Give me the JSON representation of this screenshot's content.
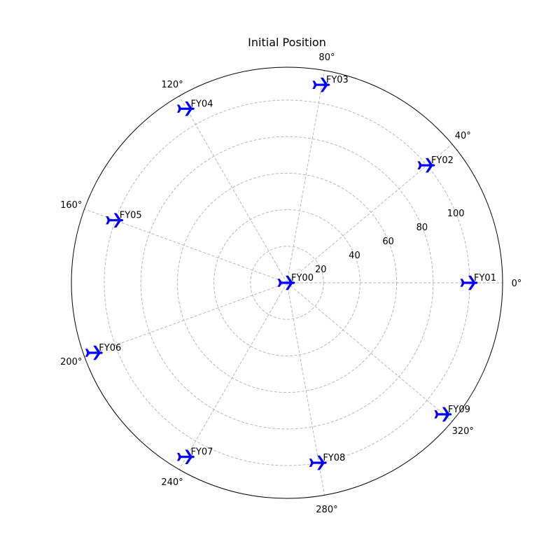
{
  "chart_data": {
    "type": "scatter",
    "projection": "polar",
    "title": "Initial Position",
    "theta_unit": "degrees",
    "theta_ticks": [
      0,
      40,
      80,
      120,
      160,
      200,
      240,
      280,
      320
    ],
    "theta_tick_labels": [
      "0°",
      "40°",
      "80°",
      "120°",
      "160°",
      "200°",
      "240°",
      "280°",
      "320°"
    ],
    "r_ticks": [
      20,
      40,
      60,
      80,
      100
    ],
    "r_tick_labels": [
      "20",
      "40",
      "60",
      "80",
      "100"
    ],
    "rlim": [
      0,
      118
    ],
    "r_label_angle_deg": 22.5,
    "grid": true,
    "marker": "airplane",
    "marker_color": "#0000ff",
    "points": [
      {
        "label": "FY00",
        "theta": 0,
        "r": 0
      },
      {
        "label": "FY01",
        "theta": 0,
        "r": 100
      },
      {
        "label": "FY02",
        "theta": 40,
        "r": 100
      },
      {
        "label": "FY03",
        "theta": 80,
        "r": 110
      },
      {
        "label": "FY04",
        "theta": 120,
        "r": 110
      },
      {
        "label": "FY05",
        "theta": 160,
        "r": 100
      },
      {
        "label": "FY06",
        "theta": 200,
        "r": 112
      },
      {
        "label": "FY07",
        "theta": 240,
        "r": 110
      },
      {
        "label": "FY08",
        "theta": 280,
        "r": 100
      },
      {
        "label": "FY09",
        "theta": 320,
        "r": 112
      }
    ]
  }
}
